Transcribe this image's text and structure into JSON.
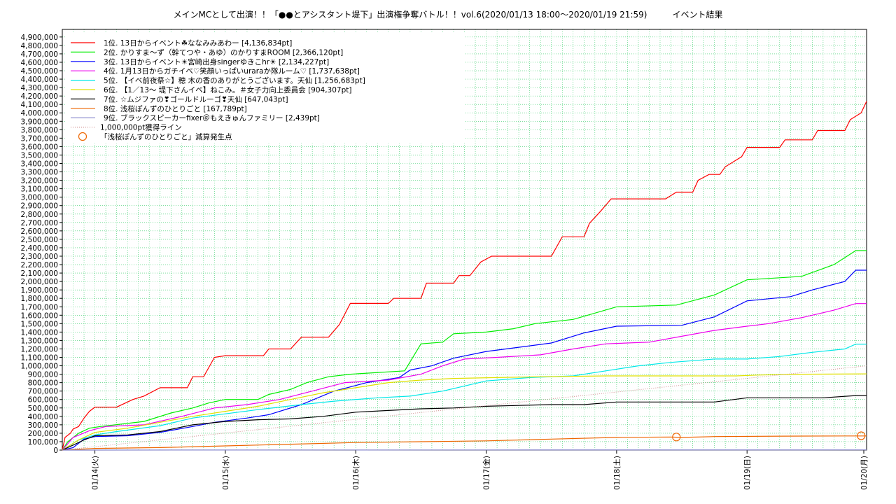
{
  "chart_data": {
    "type": "line",
    "title": "メインMCとして出演！！「●●とアシスタント堤下」出演権争奪バトル！！vol.6(2020/01/13 18:00～2020/01/19 21:59)　　　イベント結果",
    "xlabel": "",
    "ylabel": "",
    "ylim": [
      0,
      4990000
    ],
    "xlim_hours": [
      0,
      148
    ],
    "grid": true,
    "legend_position": "top-left",
    "x_ticks": [
      {
        "h": 6,
        "label": "01/14(火)"
      },
      {
        "h": 30,
        "label": "01/15(水)"
      },
      {
        "h": 54,
        "label": "01/16(木)"
      },
      {
        "h": 78,
        "label": "01/17(金)"
      },
      {
        "h": 102,
        "label": "01/18(土)"
      },
      {
        "h": 126,
        "label": "01/19(日)"
      },
      {
        "h": 150,
        "label": "01/20(月)"
      }
    ],
    "y_ticks": [
      "0",
      "100,000",
      "200,000",
      "300,000",
      "400,000",
      "500,000",
      "600,000",
      "700,000",
      "800,000",
      "900,000",
      "1,000,000",
      "1,100,000",
      "1,200,000",
      "1,300,000",
      "1,400,000",
      "1,500,000",
      "1,600,000",
      "1,700,000",
      "1,800,000",
      "1,900,000",
      "2,000,000",
      "2,100,000",
      "2,200,000",
      "2,300,000",
      "2,400,000",
      "2,500,000",
      "2,600,000",
      "2,700,000",
      "2,800,000",
      "2,900,000",
      "3,000,000",
      "3,100,000",
      "3,200,000",
      "3,300,000",
      "3,400,000",
      "3,500,000",
      "3,600,000",
      "3,700,000",
      "3,800,000",
      "3,900,000",
      "4,000,000",
      "4,100,000",
      "4,200,000",
      "4,300,000",
      "4,400,000",
      "4,500,000",
      "4,600,000",
      "4,700,000",
      "4,800,000",
      "4,900,000"
    ],
    "series": [
      {
        "name": "1位. 13日からイベント☘ななみみあわー [4,136,834pt]",
        "color": "#ff0000",
        "points": [
          [
            0,
            0
          ],
          [
            0.5,
            150000
          ],
          [
            1.5,
            200000
          ],
          [
            2,
            250000
          ],
          [
            3,
            280000
          ],
          [
            4,
            380000
          ],
          [
            5,
            460000
          ],
          [
            6,
            510000
          ],
          [
            10,
            510000
          ],
          [
            13,
            600000
          ],
          [
            15,
            640000
          ],
          [
            18,
            740000
          ],
          [
            23,
            740000
          ],
          [
            24,
            870000
          ],
          [
            26,
            870000
          ],
          [
            28,
            1100000
          ],
          [
            30,
            1120000
          ],
          [
            37,
            1120000
          ],
          [
            38,
            1200000
          ],
          [
            42,
            1200000
          ],
          [
            44,
            1340000
          ],
          [
            49,
            1340000
          ],
          [
            51,
            1490000
          ],
          [
            53,
            1740000
          ],
          [
            60,
            1740000
          ],
          [
            61,
            1800000
          ],
          [
            66,
            1800000
          ],
          [
            67,
            1980000
          ],
          [
            72,
            1980000
          ],
          [
            73,
            2070000
          ],
          [
            75,
            2070000
          ],
          [
            77,
            2230000
          ],
          [
            79,
            2300000
          ],
          [
            90,
            2300000
          ],
          [
            92,
            2530000
          ],
          [
            96,
            2530000
          ],
          [
            97,
            2690000
          ],
          [
            99,
            2830000
          ],
          [
            101,
            2980000
          ],
          [
            111,
            2980000
          ],
          [
            113,
            3060000
          ],
          [
            116,
            3060000
          ],
          [
            117,
            3200000
          ],
          [
            119,
            3270000
          ],
          [
            121,
            3270000
          ],
          [
            122,
            3360000
          ],
          [
            125,
            3480000
          ],
          [
            126,
            3590000
          ],
          [
            132,
            3590000
          ],
          [
            133,
            3680000
          ],
          [
            138,
            3680000
          ],
          [
            139,
            3790000
          ],
          [
            144,
            3790000
          ],
          [
            145,
            3920000
          ],
          [
            147,
            4000000
          ],
          [
            148,
            4136834
          ]
        ]
      },
      {
        "name": "2位. かりすま〜ず（幹てつや・あゆ）のかりすまROOM [2,366,120pt]",
        "color": "#00ee00",
        "points": [
          [
            0,
            0
          ],
          [
            1,
            100000
          ],
          [
            3,
            200000
          ],
          [
            5,
            260000
          ],
          [
            7,
            280000
          ],
          [
            15,
            340000
          ],
          [
            20,
            440000
          ],
          [
            24,
            500000
          ],
          [
            27,
            560000
          ],
          [
            30,
            600000
          ],
          [
            36,
            600000
          ],
          [
            38,
            660000
          ],
          [
            42,
            720000
          ],
          [
            45,
            800000
          ],
          [
            49,
            870000
          ],
          [
            53,
            900000
          ],
          [
            63,
            940000
          ],
          [
            66,
            1260000
          ],
          [
            70,
            1280000
          ],
          [
            72,
            1380000
          ],
          [
            78,
            1400000
          ],
          [
            83,
            1440000
          ],
          [
            87,
            1500000
          ],
          [
            94,
            1550000
          ],
          [
            102,
            1700000
          ],
          [
            113,
            1720000
          ],
          [
            120,
            1840000
          ],
          [
            126,
            2020000
          ],
          [
            136,
            2060000
          ],
          [
            142,
            2200000
          ],
          [
            146,
            2366120
          ],
          [
            148,
            2366120
          ]
        ]
      },
      {
        "name": "3位. 13日からイベント☀宮崎出身singerゆきこhr☀ [2,134,227pt]",
        "color": "#0000ff",
        "points": [
          [
            0,
            0
          ],
          [
            2,
            30000
          ],
          [
            4,
            130000
          ],
          [
            6,
            160000
          ],
          [
            12,
            170000
          ],
          [
            18,
            210000
          ],
          [
            24,
            280000
          ],
          [
            28,
            330000
          ],
          [
            34,
            380000
          ],
          [
            38,
            420000
          ],
          [
            44,
            540000
          ],
          [
            50,
            700000
          ],
          [
            56,
            800000
          ],
          [
            62,
            860000
          ],
          [
            64,
            950000
          ],
          [
            68,
            1000000
          ],
          [
            72,
            1090000
          ],
          [
            78,
            1170000
          ],
          [
            84,
            1220000
          ],
          [
            90,
            1270000
          ],
          [
            96,
            1390000
          ],
          [
            102,
            1470000
          ],
          [
            114,
            1480000
          ],
          [
            120,
            1580000
          ],
          [
            126,
            1770000
          ],
          [
            134,
            1820000
          ],
          [
            138,
            1900000
          ],
          [
            144,
            2000000
          ],
          [
            146,
            2134227
          ],
          [
            148,
            2134227
          ]
        ]
      },
      {
        "name": "4位. 1月13日からガチイベ♡笑顔いっぱいuraraか隊ルーム♡ [1,737,638pt]",
        "color": "#ee00ee",
        "points": [
          [
            0,
            0
          ],
          [
            2,
            150000
          ],
          [
            5,
            230000
          ],
          [
            8,
            280000
          ],
          [
            15,
            300000
          ],
          [
            22,
            400000
          ],
          [
            28,
            500000
          ],
          [
            34,
            540000
          ],
          [
            40,
            600000
          ],
          [
            46,
            700000
          ],
          [
            52,
            800000
          ],
          [
            60,
            830000
          ],
          [
            66,
            900000
          ],
          [
            70,
            1000000
          ],
          [
            74,
            1080000
          ],
          [
            80,
            1100000
          ],
          [
            88,
            1130000
          ],
          [
            94,
            1200000
          ],
          [
            100,
            1260000
          ],
          [
            108,
            1280000
          ],
          [
            114,
            1350000
          ],
          [
            120,
            1420000
          ],
          [
            126,
            1470000
          ],
          [
            130,
            1500000
          ],
          [
            136,
            1570000
          ],
          [
            142,
            1660000
          ],
          [
            146,
            1737638
          ],
          [
            148,
            1737638
          ]
        ]
      },
      {
        "name": "5位. 【イベ前夜祭☆】穂 木の香のありがとうございます。天仙 [1,256,683pt]",
        "color": "#00e8e8",
        "points": [
          [
            0,
            0
          ],
          [
            3,
            120000
          ],
          [
            6,
            180000
          ],
          [
            10,
            220000
          ],
          [
            18,
            290000
          ],
          [
            24,
            380000
          ],
          [
            30,
            430000
          ],
          [
            36,
            480000
          ],
          [
            44,
            540000
          ],
          [
            50,
            580000
          ],
          [
            58,
            620000
          ],
          [
            64,
            640000
          ],
          [
            70,
            700000
          ],
          [
            78,
            820000
          ],
          [
            86,
            860000
          ],
          [
            94,
            880000
          ],
          [
            100,
            940000
          ],
          [
            106,
            1000000
          ],
          [
            112,
            1040000
          ],
          [
            120,
            1080000
          ],
          [
            126,
            1080000
          ],
          [
            132,
            1110000
          ],
          [
            138,
            1160000
          ],
          [
            144,
            1200000
          ],
          [
            146,
            1256683
          ],
          [
            148,
            1256683
          ]
        ]
      },
      {
        "name": "6位. 【1／13〜 堤下さんイベ】ねこみ。＃女子力向上委員会 [904,307pt]",
        "color": "#e0e000",
        "points": [
          [
            0,
            0
          ],
          [
            3,
            120000
          ],
          [
            6,
            210000
          ],
          [
            12,
            260000
          ],
          [
            18,
            330000
          ],
          [
            24,
            400000
          ],
          [
            30,
            460000
          ],
          [
            36,
            520000
          ],
          [
            42,
            600000
          ],
          [
            48,
            680000
          ],
          [
            54,
            740000
          ],
          [
            60,
            800000
          ],
          [
            66,
            830000
          ],
          [
            72,
            850000
          ],
          [
            80,
            860000
          ],
          [
            88,
            870000
          ],
          [
            100,
            880000
          ],
          [
            112,
            880000
          ],
          [
            124,
            880000
          ],
          [
            128,
            890000
          ],
          [
            136,
            900000
          ],
          [
            148,
            904307
          ]
        ]
      },
      {
        "name": "7位. ☆ムジファの❣ゴールドルーゴ❣天仙 [647,043pt]",
        "color": "#000000",
        "points": [
          [
            0,
            0
          ],
          [
            2,
            60000
          ],
          [
            4,
            120000
          ],
          [
            6,
            170000
          ],
          [
            12,
            180000
          ],
          [
            18,
            220000
          ],
          [
            24,
            300000
          ],
          [
            30,
            340000
          ],
          [
            36,
            360000
          ],
          [
            42,
            370000
          ],
          [
            48,
            400000
          ],
          [
            54,
            450000
          ],
          [
            60,
            470000
          ],
          [
            66,
            490000
          ],
          [
            72,
            500000
          ],
          [
            78,
            520000
          ],
          [
            84,
            530000
          ],
          [
            90,
            540000
          ],
          [
            96,
            540000
          ],
          [
            102,
            570000
          ],
          [
            108,
            570000
          ],
          [
            114,
            570000
          ],
          [
            120,
            570000
          ],
          [
            126,
            620000
          ],
          [
            132,
            620000
          ],
          [
            140,
            620000
          ],
          [
            146,
            647043
          ],
          [
            148,
            647043
          ]
        ]
      },
      {
        "name": "8位. 浅桜ぽんずのひとりごと [167,789pt]",
        "color": "#ee6600",
        "points": [
          [
            0,
            0
          ],
          [
            6,
            20000
          ],
          [
            18,
            30000
          ],
          [
            30,
            50000
          ],
          [
            42,
            70000
          ],
          [
            54,
            90000
          ],
          [
            66,
            100000
          ],
          [
            78,
            110000
          ],
          [
            90,
            130000
          ],
          [
            102,
            150000
          ],
          [
            112,
            155000
          ],
          [
            114,
            150000
          ],
          [
            120,
            160000
          ],
          [
            132,
            165000
          ],
          [
            144,
            168000
          ],
          [
            146,
            167789
          ],
          [
            148,
            167789
          ]
        ]
      },
      {
        "name": "9位. ブラックスピーカーfixer＠もえきゅんファミリー [2,439pt]",
        "color": "#8888cc",
        "points": [
          [
            0,
            0
          ],
          [
            24,
            1000
          ],
          [
            72,
            2000
          ],
          [
            148,
            2439
          ]
        ]
      },
      {
        "name": "1,000,000pt獲得ライン",
        "color": "#d09090",
        "dotted": true,
        "points": [
          [
            0,
            0
          ],
          [
            148,
            1000000
          ]
        ]
      },
      {
        "name": "「浅桜ぽんずのひとりごと」減算発生点",
        "color": "#ee6600",
        "marker": "circle",
        "points": [
          [
            113,
            155000
          ],
          [
            147,
            170000
          ]
        ]
      }
    ]
  }
}
